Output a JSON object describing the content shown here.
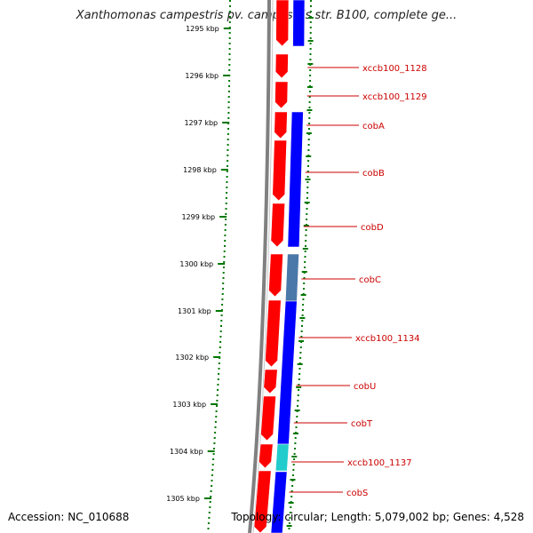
{
  "title": "Xanthomonas campestris pv. campestris str. B100, complete ge...",
  "accession": "Accession: NC_010688",
  "topology": "Topology: circular; Length: 5,079,002 bp; Genes: 4,528",
  "colors": {
    "strand_forward": "#ff0000",
    "strand_reverse": "#0000ff",
    "gene_steelblue": "#4a78a8",
    "gene_cyan": "#22cccc",
    "backbone": "#808080",
    "ticks": "#007700",
    "labels": "#cc0000"
  },
  "scale_labels": [
    "1295 kbp",
    "1296 kbp",
    "1297 kbp",
    "1298 kbp",
    "1299 kbp",
    "1300 kbp",
    "1301 kbp",
    "1302 kbp",
    "1303 kbp",
    "1304 kbp",
    "1305 kbp"
  ],
  "gene_labels": [
    {
      "name": "xccb100_1128"
    },
    {
      "name": "xccb100_1129"
    },
    {
      "name": "cobA"
    },
    {
      "name": "cobB"
    },
    {
      "name": "cobD"
    },
    {
      "name": "cobC"
    },
    {
      "name": "xccb100_1134"
    },
    {
      "name": "cobU"
    },
    {
      "name": "cobT"
    },
    {
      "name": "xccb100_1137"
    },
    {
      "name": "cobS"
    }
  ]
}
